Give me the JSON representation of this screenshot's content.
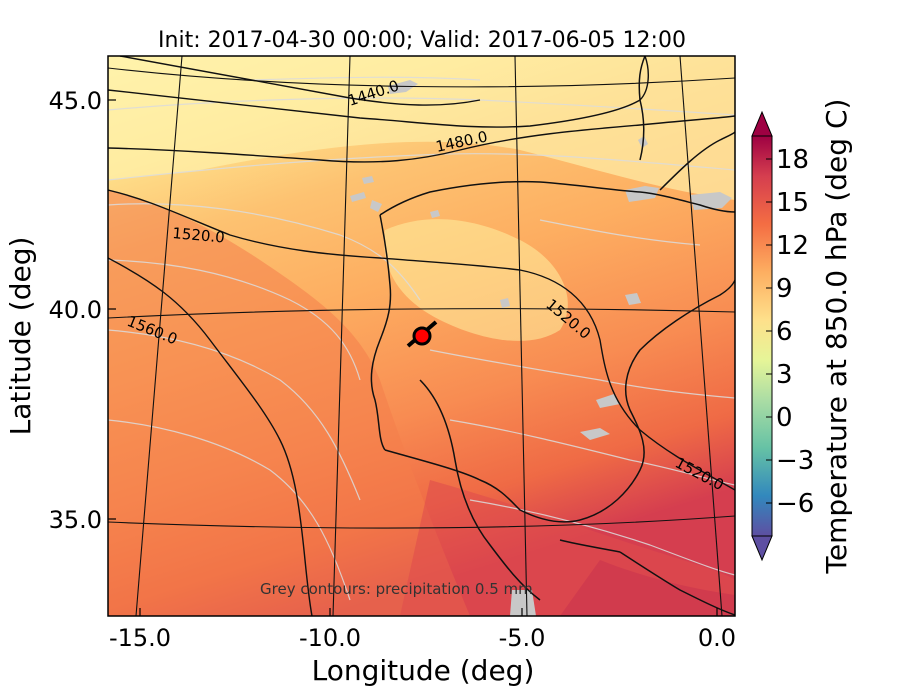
{
  "title": "Init: 2017-04-30 00:00; Valid: 2017-06-05 12:00",
  "xlabel": "Longitude (deg)",
  "ylabel": "Latitude (deg)",
  "x_ticks": [
    "-15.0",
    "-10.0",
    "-5.0",
    "0.0"
  ],
  "y_ticks": [
    "45.0",
    "40.0",
    "35.0"
  ],
  "colorbar": {
    "label": "Temperature at 850.0 hPa (deg C)",
    "ticks": [
      "18",
      "15",
      "12",
      "9",
      "6",
      "3",
      "0",
      "−3",
      "−6"
    ],
    "range": [
      -8,
      20
    ]
  },
  "contour_labels": [
    "1440.0",
    "1480.0",
    "1520.0",
    "1560.0",
    "1520.0",
    "1520.0"
  ],
  "note": "Grey contours: precipitation    0.5 mm",
  "marker": {
    "lon": -7.7,
    "lat": 39.4,
    "color": "#ff0000"
  },
  "chart_data": {
    "type": "heatmap",
    "title": "Init: 2017-04-30 00:00; Valid: 2017-06-05 12:00",
    "xlabel": "Longitude (deg)",
    "ylabel": "Latitude (deg)",
    "xlim": [
      -16,
      0
    ],
    "ylim": [
      32.5,
      46.5
    ],
    "x_ticks": [
      -15.0,
      -10.0,
      -5.0,
      0.0
    ],
    "y_ticks": [
      45.0,
      40.0,
      35.0
    ],
    "colorbar_label": "Temperature at 850.0 hPa (deg C)",
    "colorbar_ticks": [
      18,
      15,
      12,
      9,
      6,
      3,
      0,
      -3,
      -6
    ],
    "height_contours": [
      1440.0,
      1480.0,
      1520.0,
      1560.0
    ],
    "precip_threshold": "0.5 mm"
  }
}
